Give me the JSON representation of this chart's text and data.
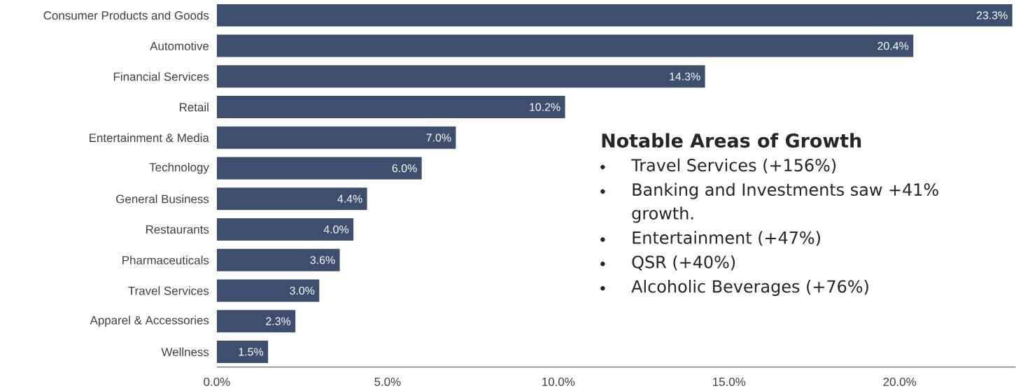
{
  "chart_data": {
    "type": "bar",
    "orientation": "horizontal",
    "color": "#3e4f6d",
    "categories": [
      "Consumer Products and Goods",
      "Automotive",
      "Financial Services",
      "Retail",
      "Entertainment & Media",
      "Technology",
      "General Business",
      "Restaurants",
      "Pharmaceuticals",
      "Travel Services",
      "Apparel & Accessories",
      "Wellness"
    ],
    "values": [
      23.3,
      20.4,
      14.3,
      10.2,
      7.0,
      6.0,
      4.4,
      4.0,
      3.6,
      3.0,
      2.3,
      1.5
    ],
    "value_labels": [
      "23.3%",
      "20.4%",
      "14.3%",
      "10.2%",
      "7.0%",
      "6.0%",
      "4.4%",
      "4.0%",
      "3.6%",
      "3.0%",
      "2.3%",
      "1.5%"
    ],
    "xlim": [
      0,
      23.4
    ],
    "xticks": [
      {
        "value": 0,
        "label": "0.0%"
      },
      {
        "value": 5,
        "label": "5.0%"
      },
      {
        "value": 10,
        "label": "10.0%"
      },
      {
        "value": 15,
        "label": "15.0%"
      },
      {
        "value": 20,
        "label": "20.0%"
      }
    ],
    "annotations": [
      "Notable Areas of Growth",
      "Travel Services (+156%)",
      "Banking and Investments saw +41% growth.",
      "Entertainment (+47%)",
      "QSR (+40%)",
      "Alcoholic Beverages (+76%)"
    ]
  }
}
